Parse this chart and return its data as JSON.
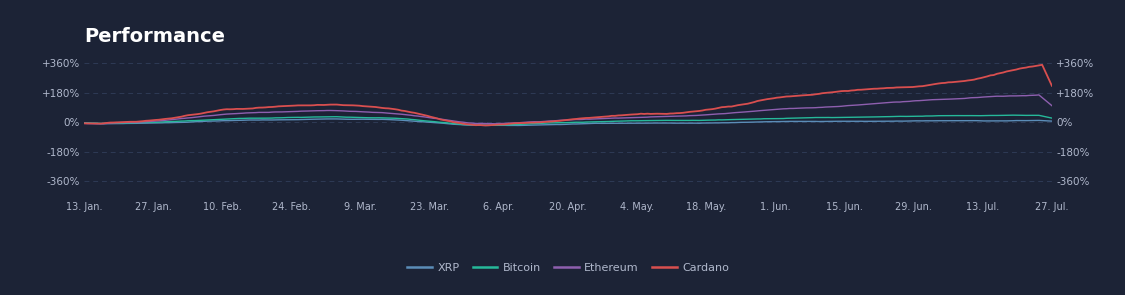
{
  "title": "Performance",
  "background_color": "#1c2336",
  "plot_bg_color": "#1c2336",
  "grid_color": "#2e3a55",
  "text_color": "#b0b8cc",
  "title_color": "#ffffff",
  "ytick_values": [
    -360,
    -180,
    0,
    180,
    360
  ],
  "ylim": [
    -460,
    440
  ],
  "xtick_labels": [
    "13. Jan.",
    "27. Jan.",
    "10. Feb.",
    "24. Feb.",
    "9. Mar.",
    "23. Mar.",
    "6. Apr.",
    "20. Apr.",
    "4. May.",
    "18. May.",
    "1. Jun.",
    "15. Jun.",
    "29. Jun.",
    "13. Jul.",
    "27. Jul."
  ],
  "legend_labels": [
    "XRP",
    "Bitcoin",
    "Ethereum",
    "Cardano"
  ],
  "line_colors": {
    "XRP": "#5b8db8",
    "Bitcoin": "#26b99a",
    "Ethereum": "#8e5faf",
    "Cardano": "#d94f4f"
  },
  "line_widths": {
    "XRP": 1.0,
    "Bitcoin": 1.0,
    "Ethereum": 1.0,
    "Cardano": 1.3
  }
}
